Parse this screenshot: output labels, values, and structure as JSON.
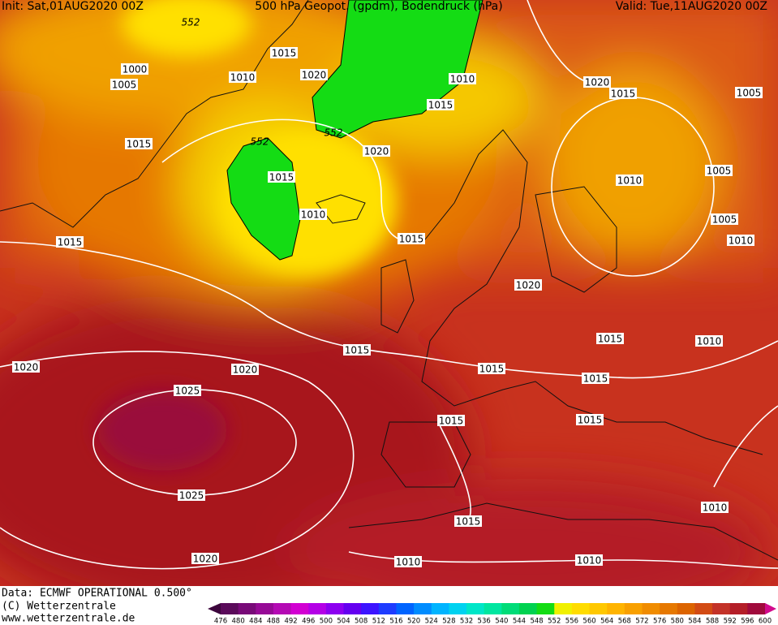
{
  "header": {
    "init": "Init: Sat,01AUG2020 00Z",
    "title": "500 hPa Geopot. (gpdm), Bodendruck (hPa)",
    "valid": "Valid: Tue,11AUG2020 00Z"
  },
  "isobar_labels": [
    "1000",
    "1005",
    "1015",
    "1010",
    "1020",
    "1010",
    "1015",
    "1020",
    "1015",
    "1005",
    "1015",
    "1020",
    "1015",
    "1010",
    "1010",
    "1005",
    "1005",
    "1010",
    "1015",
    "1015",
    "1020",
    "1015",
    "1010",
    "1015",
    "1020",
    "1020",
    "1015",
    "1015",
    "1025",
    "1015",
    "1015",
    "1025",
    "1015",
    "1010",
    "1020",
    "1010",
    "1010"
  ],
  "contour_labels": [
    "552",
    "552",
    "552"
  ],
  "footer": {
    "data": "Data: ECMWF OPERATIONAL 0.500°",
    "copyright": "(C) Wetterzentrale",
    "url": "www.wetterzentrale.de"
  },
  "legend": {
    "labels": [
      "476",
      "480",
      "484",
      "488",
      "492",
      "496",
      "500",
      "504",
      "508",
      "512",
      "516",
      "520",
      "524",
      "528",
      "532",
      "536",
      "540",
      "544",
      "548",
      "552",
      "556",
      "560",
      "564",
      "568",
      "572",
      "576",
      "580",
      "584",
      "588",
      "592",
      "596",
      "600"
    ],
    "colors": [
      "#3c063c",
      "#5a0a5a",
      "#780a78",
      "#960a96",
      "#b40ab4",
      "#d200d2",
      "#b400e6",
      "#8c00f0",
      "#6400f0",
      "#3c14ff",
      "#1e3cff",
      "#0064ff",
      "#008cff",
      "#00b4ff",
      "#00d2f0",
      "#00e6c8",
      "#00e6a0",
      "#00dc78",
      "#00d250",
      "#14dc14",
      "#f0f000",
      "#ffdc00",
      "#ffc800",
      "#ffb400",
      "#f8a000",
      "#f08c00",
      "#e67800",
      "#dc6400",
      "#d24b14",
      "#c33228",
      "#b41e28",
      "#a00a3c",
      "#d20a8c"
    ]
  }
}
